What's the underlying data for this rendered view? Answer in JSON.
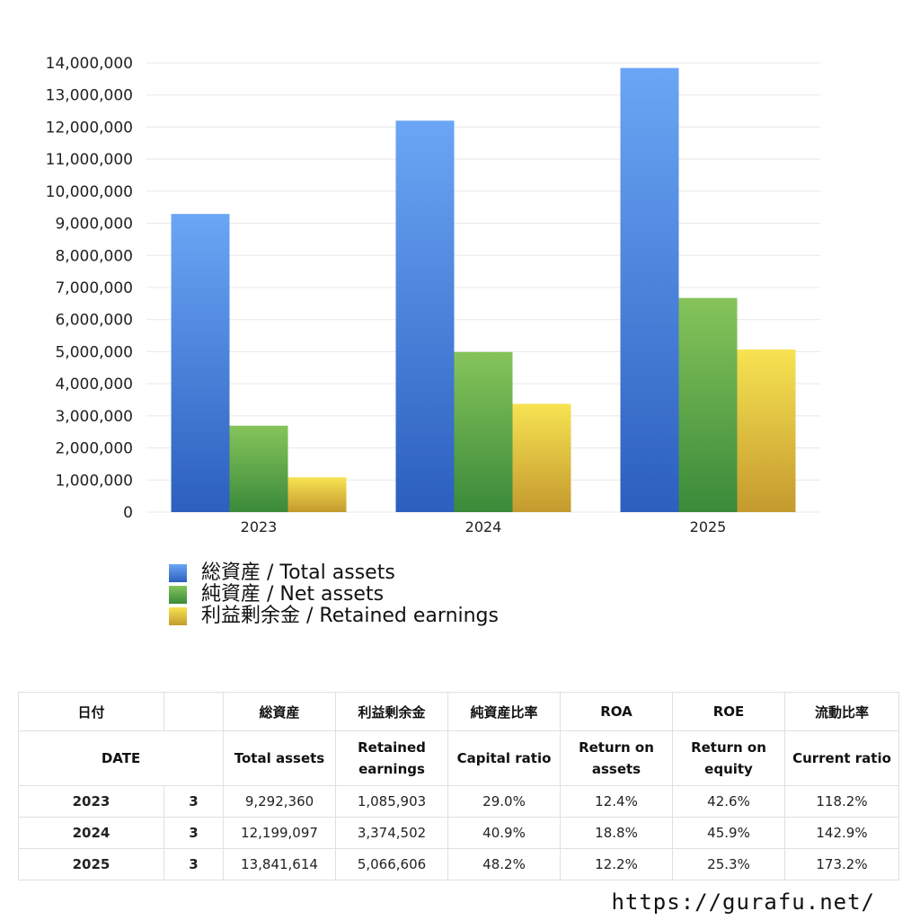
{
  "chart_data": {
    "type": "bar",
    "categories": [
      "2023",
      "2024",
      "2025"
    ],
    "series": [
      {
        "name": "総資産 / Total assets",
        "values": [
          9292360,
          12199097,
          13841614
        ],
        "color_top": "#6aa6f5",
        "color_bottom": "#2c5fbe"
      },
      {
        "name": "純資産 / Net assets",
        "values": [
          2694000,
          4989000,
          6674000
        ],
        "color_top": "#86c45a",
        "color_bottom": "#3a8a3a"
      },
      {
        "name": "利益剰余金 / Retained earnings",
        "values": [
          1085903,
          3374502,
          5066606
        ],
        "color_top": "#f7e352",
        "color_bottom": "#c49a2e"
      }
    ],
    "yticks": [
      "0",
      "1,000,000",
      "2,000,000",
      "3,000,000",
      "4,000,000",
      "5,000,000",
      "6,000,000",
      "7,000,000",
      "8,000,000",
      "9,000,000",
      "10,000,000",
      "11,000,000",
      "12,000,000",
      "13,000,000",
      "14,000,000"
    ],
    "ylim": [
      0,
      14000000
    ],
    "grid": true,
    "legend_position": "bottom-left"
  },
  "table": {
    "header_jp": [
      "日付",
      "",
      "総資産",
      "利益剰余金",
      "純資産比率",
      "ROA",
      "ROE",
      "流動比率"
    ],
    "header_en": [
      "DATE",
      "Total assets",
      "Retained\nearnings",
      "Capital ratio",
      "Return on\nassets",
      "Return on\nequity",
      "Current ratio"
    ],
    "rows": [
      {
        "year": "2023",
        "month": "3",
        "total_assets": "9,292,360",
        "retained": "1,085,903",
        "capital_ratio": "29.0%",
        "roa": "12.4%",
        "roe": "42.6%",
        "current_ratio": "118.2%"
      },
      {
        "year": "2024",
        "month": "3",
        "total_assets": "12,199,097",
        "retained": "3,374,502",
        "capital_ratio": "40.9%",
        "roa": "18.8%",
        "roe": "45.9%",
        "current_ratio": "142.9%"
      },
      {
        "year": "2025",
        "month": "3",
        "total_assets": "13,841,614",
        "retained": "5,066,606",
        "capital_ratio": "48.2%",
        "roa": "12.2%",
        "roe": "25.3%",
        "current_ratio": "173.2%"
      }
    ]
  },
  "footer_url": "https://gurafu.net/"
}
